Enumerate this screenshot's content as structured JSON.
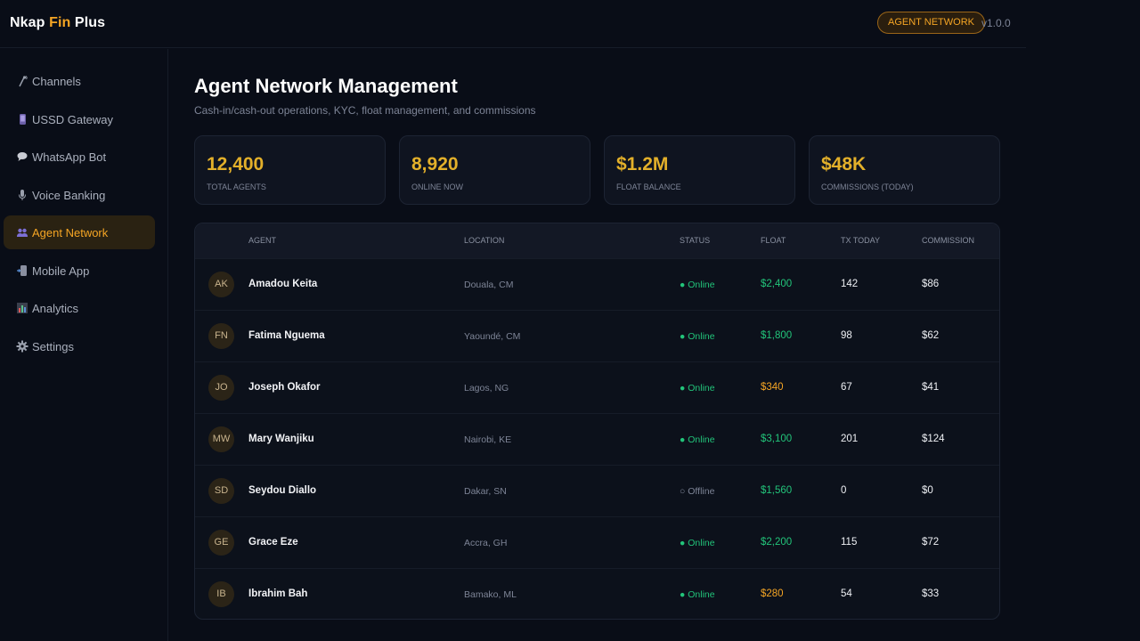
{
  "header": {
    "brand_part1": "Nkap",
    "brand_part2": "Fin",
    "brand_part3": "Plus",
    "badge": "AGENT NETWORK",
    "version": "v1.0.0"
  },
  "sidebar": {
    "items": [
      {
        "label": "Channels",
        "icon": "antenna-icon",
        "active": false
      },
      {
        "label": "USSD Gateway",
        "icon": "phone-icon",
        "active": false
      },
      {
        "label": "WhatsApp Bot",
        "icon": "chat-bubble-icon",
        "active": false
      },
      {
        "label": "Voice Banking",
        "icon": "microphone-icon",
        "active": false
      },
      {
        "label": "Agent Network",
        "icon": "people-icon",
        "active": true
      },
      {
        "label": "Mobile App",
        "icon": "mobile-icon",
        "active": false
      },
      {
        "label": "Analytics",
        "icon": "chart-icon",
        "active": false
      },
      {
        "label": "Settings",
        "icon": "gear-icon",
        "active": false
      }
    ]
  },
  "page": {
    "title": "Agent Network Management",
    "subtitle": "Cash-in/cash-out operations, KYC, float management, and commissions"
  },
  "stats": [
    {
      "value": "12,400",
      "label": "TOTAL AGENTS"
    },
    {
      "value": "8,920",
      "label": "ONLINE NOW"
    },
    {
      "value": "$1.2M",
      "label": "FLOAT BALANCE"
    },
    {
      "value": "$48K",
      "label": "COMMISSIONS (TODAY)"
    }
  ],
  "table": {
    "columns": {
      "agent": "AGENT",
      "location": "LOCATION",
      "status": "STATUS",
      "float": "FLOAT",
      "tx": "TX TODAY",
      "commission": "COMMISSION"
    },
    "rows": [
      {
        "initials": "AK",
        "name": "Amadou Keita",
        "location": "Douala, CM",
        "status": "● Online",
        "float": "$2,400",
        "tx": "142",
        "commission": "$86"
      },
      {
        "initials": "FN",
        "name": "Fatima Nguema",
        "location": "Yaoundé, CM",
        "status": "● Online",
        "float": "$1,800",
        "tx": "98",
        "commission": "$62"
      },
      {
        "initials": "JO",
        "name": "Joseph Okafor",
        "location": "Lagos, NG",
        "status": "● Online",
        "float": "$340",
        "tx": "67",
        "commission": "$41"
      },
      {
        "initials": "MW",
        "name": "Mary Wanjiku",
        "location": "Nairobi, KE",
        "status": "● Online",
        "float": "$3,100",
        "tx": "201",
        "commission": "$124"
      },
      {
        "initials": "SD",
        "name": "Seydou Diallo",
        "location": "Dakar, SN",
        "status": "○ Offline",
        "float": "$1,560",
        "tx": "0",
        "commission": "$0"
      },
      {
        "initials": "GE",
        "name": "Grace Eze",
        "location": "Accra, GH",
        "status": "● Online",
        "float": "$2,200",
        "tx": "115",
        "commission": "$72"
      },
      {
        "initials": "IB",
        "name": "Ibrahim Bah",
        "location": "Bamako, ML",
        "status": "● Online",
        "float": "$280",
        "tx": "54",
        "commission": "$33"
      }
    ]
  },
  "colors": {
    "accent": "#f5a524",
    "stat_value": "#e3b02a",
    "online": "#22c47a",
    "background": "#090d17"
  }
}
